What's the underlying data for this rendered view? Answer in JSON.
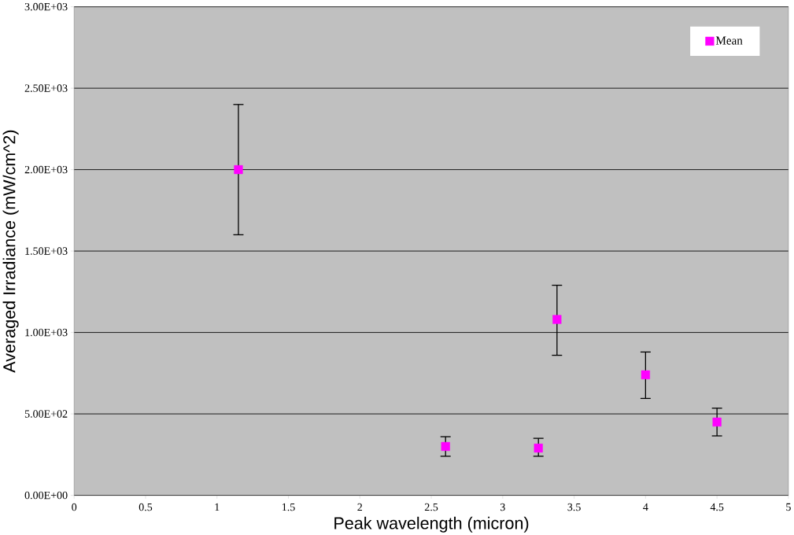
{
  "chart_data": {
    "type": "scatter",
    "xlabel": "Peak wavelength (micron)",
    "ylabel": "Averaged Irradiance (mW/cm^2)",
    "x": [
      1.15,
      2.6,
      3.25,
      3.38,
      4.0,
      4.5
    ],
    "series": [
      {
        "name": "Mean",
        "color": "#ff00ff",
        "values": [
          2000,
          300,
          290,
          1080,
          740,
          450
        ],
        "errors": [
          [
            1600,
            2400
          ],
          [
            240,
            360
          ],
          [
            240,
            350
          ],
          [
            860,
            1290
          ],
          [
            595,
            880
          ],
          [
            365,
            535
          ]
        ]
      }
    ],
    "xlim": [
      0,
      5
    ],
    "xticks": [
      0,
      0.5,
      1,
      1.5,
      2,
      2.5,
      3,
      3.5,
      4,
      4.5,
      5
    ],
    "ylim": [
      0,
      3000
    ],
    "yticks": [
      {
        "value": 0,
        "label": "0.00E+00"
      },
      {
        "value": 500,
        "label": "5.00E+02"
      },
      {
        "value": 1000,
        "label": "1.00E+03"
      },
      {
        "value": 1500,
        "label": "1.50E+03"
      },
      {
        "value": 2000,
        "label": "2.00E+03"
      },
      {
        "value": 2500,
        "label": "2.50E+03"
      },
      {
        "value": 3000,
        "label": "3.00E+03"
      }
    ],
    "grid": "y",
    "legend": "top right",
    "marker": "square"
  }
}
